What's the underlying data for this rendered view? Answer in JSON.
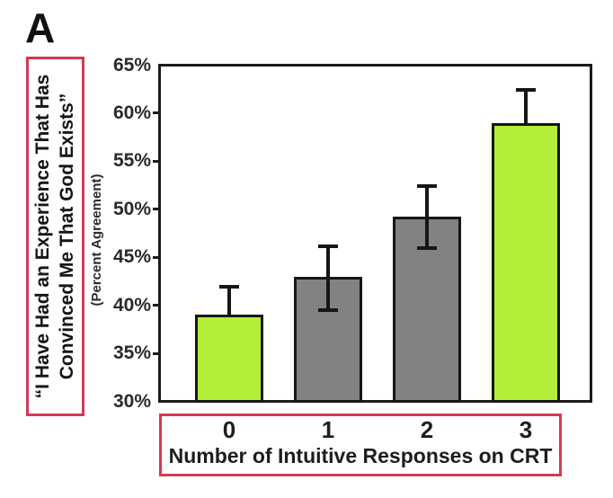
{
  "panel": {
    "label": "A"
  },
  "y_axis": {
    "title_line1": "“I Have Had an Experience That Has",
    "title_line2": "Convinced Me That God Exists”",
    "subtitle": "(Percent Agreement)",
    "tick_labels": [
      "30%",
      "35%",
      "40%",
      "45%",
      "50%",
      "55%",
      "60%",
      "65%"
    ]
  },
  "x_axis": {
    "label": "Number of Intuitive Responses on CRT",
    "tick_labels": [
      "0",
      "1",
      "2",
      "3"
    ]
  },
  "colors": {
    "bar_green": "#b5ee38",
    "bar_gray": "#828282",
    "accent_red": "#d23a52",
    "axis_black": "#1b1b1b"
  },
  "chart_data": {
    "type": "bar",
    "title": "",
    "categories": [
      "0",
      "1",
      "2",
      "3"
    ],
    "values": [
      39,
      43,
      49.2,
      59
    ],
    "error_upper": [
      3.1,
      3.3,
      3.4,
      3.6
    ],
    "error_lower": [
      3.1,
      3.7,
      3.4,
      3.6
    ],
    "bar_colors": [
      "#b5ee38",
      "#828282",
      "#828282",
      "#b5ee38"
    ],
    "xlabel": "Number of Intuitive Responses on CRT",
    "ylabel": "“I Have Had an Experience That Has Convinced Me That God Exists” (Percent Agreement)",
    "ylim": [
      30,
      65
    ],
    "ytick_step": 5,
    "grid": false,
    "legend": null
  }
}
